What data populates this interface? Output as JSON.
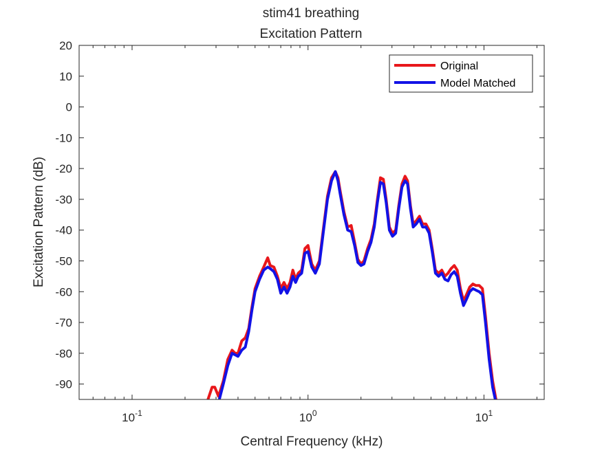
{
  "chart_data": {
    "type": "line",
    "title": "stim41 breathing",
    "subtitle": "Excitation Pattern",
    "xlabel": "Central Frequency (kHz)",
    "ylabel": "Excitation Pattern (dB)",
    "xscale": "log",
    "xlim": [
      0.05,
      22
    ],
    "ylim": [
      -95,
      20
    ],
    "x_ticks": [
      {
        "value": 0.1,
        "base": "10",
        "exp": "-1"
      },
      {
        "value": 1,
        "base": "10",
        "exp": "0"
      },
      {
        "value": 10,
        "base": "10",
        "exp": "1"
      }
    ],
    "y_ticks": [
      "20",
      "10",
      "0",
      "-10",
      "-20",
      "-30",
      "-40",
      "-50",
      "-60",
      "-70",
      "-80",
      "-90"
    ],
    "grid": false,
    "legend_position": "top-right",
    "x": [
      0.27,
      0.285,
      0.295,
      0.31,
      0.33,
      0.35,
      0.37,
      0.385,
      0.4,
      0.42,
      0.44,
      0.46,
      0.48,
      0.5,
      0.53,
      0.56,
      0.59,
      0.61,
      0.64,
      0.67,
      0.7,
      0.73,
      0.76,
      0.79,
      0.82,
      0.85,
      0.88,
      0.92,
      0.96,
      1.0,
      1.05,
      1.1,
      1.16,
      1.22,
      1.29,
      1.36,
      1.43,
      1.48,
      1.52,
      1.6,
      1.68,
      1.76,
      1.84,
      1.92,
      2.0,
      2.08,
      2.18,
      2.28,
      2.38,
      2.48,
      2.58,
      2.68,
      2.78,
      2.9,
      3.02,
      3.15,
      3.28,
      3.42,
      3.56,
      3.68,
      3.82,
      3.96,
      4.12,
      4.3,
      4.48,
      4.68,
      4.88,
      5.08,
      5.3,
      5.52,
      5.76,
      6.0,
      6.25,
      6.5,
      6.78,
      7.05,
      7.35,
      7.65,
      7.95,
      8.3,
      8.65,
      9.0,
      9.4,
      9.8,
      10.2,
      10.7,
      11.2,
      11.7,
      12.0
    ],
    "series": [
      {
        "name": "Original",
        "color": "#e8171b",
        "values": [
          -95,
          -91,
          -91,
          -94,
          -89,
          -82,
          -79,
          -80,
          -80,
          -76,
          -75,
          -72,
          -65,
          -59,
          -55,
          -52,
          -49,
          -51.5,
          -52,
          -55,
          -59,
          -57,
          -59,
          -57,
          -53,
          -56,
          -54,
          -53,
          -46,
          -45,
          -51,
          -53,
          -50,
          -40,
          -29,
          -23,
          -21,
          -23,
          -27,
          -34,
          -39,
          -38.5,
          -44,
          -49.5,
          -51,
          -50,
          -46,
          -43,
          -38,
          -30,
          -23,
          -23.5,
          -30,
          -39,
          -41,
          -40,
          -32,
          -25,
          -22.5,
          -24,
          -32,
          -38,
          -37,
          -35.5,
          -38,
          -38,
          -40,
          -46,
          -53,
          -54,
          -53,
          -55,
          -54,
          -52.5,
          -51.5,
          -53,
          -59,
          -63,
          -61,
          -58.5,
          -57.5,
          -58,
          -58,
          -59,
          -68,
          -80,
          -89,
          -95,
          -96
        ]
      },
      {
        "name": "Model Matched",
        "color": "#1212e6",
        "values": [
          -99,
          -98,
          -97,
          -96,
          -90,
          -84,
          -80,
          -80.5,
          -81,
          -79,
          -78,
          -73,
          -66,
          -60,
          -56,
          -53,
          -52,
          -52.5,
          -53.5,
          -56,
          -60.5,
          -58.5,
          -60.5,
          -58.5,
          -55,
          -57,
          -55,
          -54,
          -47.5,
          -47,
          -52,
          -54,
          -51,
          -41,
          -30,
          -24,
          -21,
          -24,
          -28,
          -35,
          -40,
          -40.5,
          -45,
          -50.5,
          -51.5,
          -51,
          -47,
          -44,
          -39,
          -31,
          -24.5,
          -25,
          -31,
          -40,
          -42,
          -41,
          -33,
          -26,
          -24,
          -25,
          -33,
          -39,
          -38,
          -36.5,
          -39,
          -39,
          -41,
          -47,
          -54,
          -55,
          -54,
          -56,
          -56.5,
          -54.5,
          -53.5,
          -55,
          -60.5,
          -64.5,
          -62.5,
          -60,
          -59,
          -59.5,
          -60,
          -61,
          -70,
          -82,
          -91,
          -96,
          -97
        ]
      }
    ]
  }
}
